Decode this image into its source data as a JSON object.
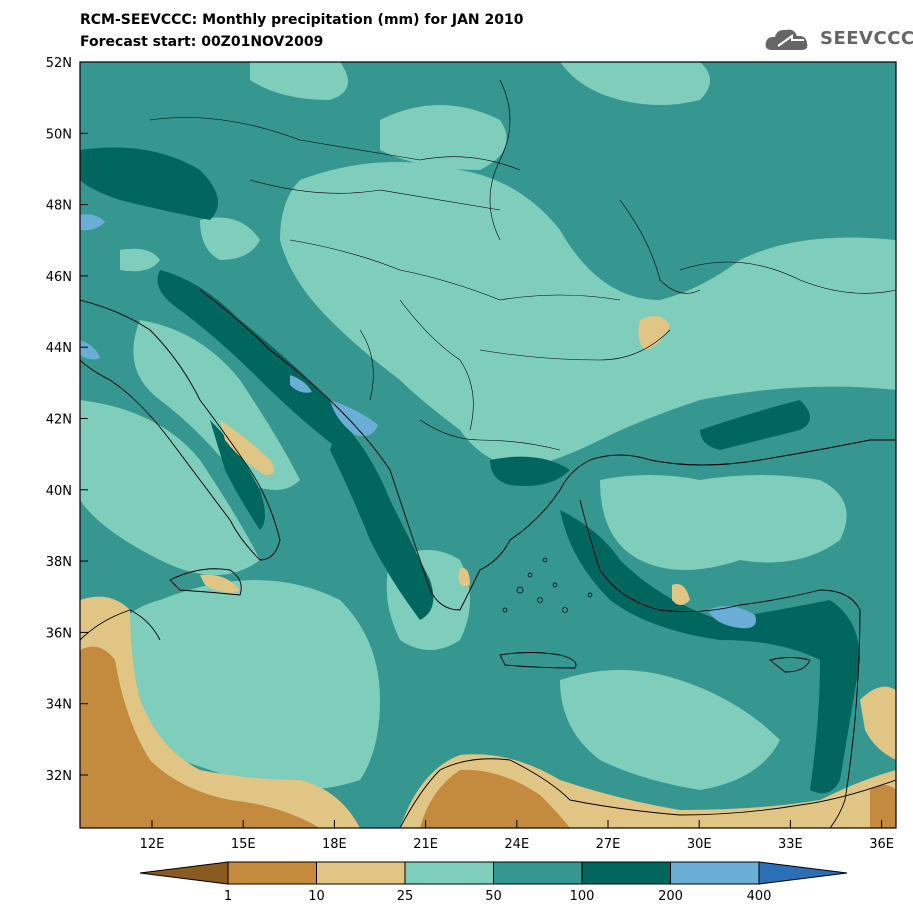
{
  "header": {
    "title_line1": "RCM-SEEVCCC: Monthly precipitation (mm) for JAN 2010",
    "title_line2": "Forecast start: 00Z01NOV2009"
  },
  "logo": {
    "text": "SEEVCCC",
    "icon": "cloud-icon"
  },
  "map": {
    "lat_labels": [
      "52N",
      "50N",
      "48N",
      "46N",
      "44N",
      "42N",
      "40N",
      "38N",
      "36N",
      "34N",
      "32N"
    ],
    "lon_labels": [
      "12E",
      "15E",
      "18E",
      "21E",
      "24E",
      "27E",
      "30E",
      "33E",
      "36E"
    ]
  },
  "legend": {
    "labels": [
      "1",
      "10",
      "25",
      "50",
      "100",
      "200",
      "400"
    ],
    "colors": [
      "#8b5a1e",
      "#c48a3e",
      "#e1c584",
      "#7fcdbb",
      "#35978f",
      "#01665e",
      "#6aaed6",
      "#2b6fb6"
    ]
  }
}
